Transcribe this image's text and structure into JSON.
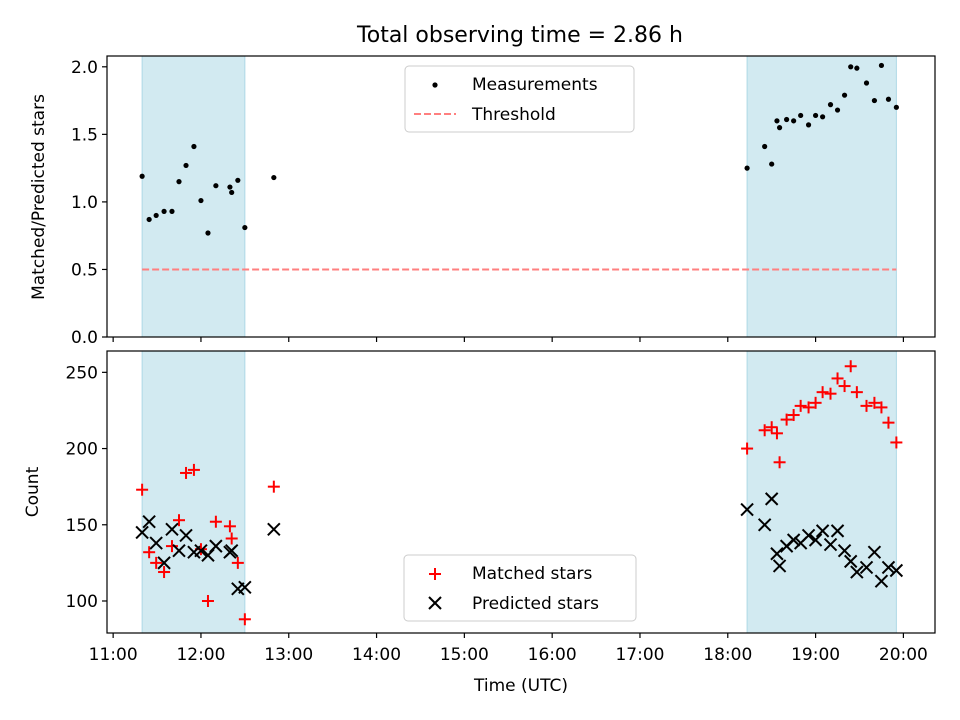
{
  "title": "Total observing time = 2.86 h",
  "chart_data": [
    {
      "type": "scatter",
      "ylabel": "Matched/Predicted stars",
      "xlabel": "",
      "xlim": [
        10.93,
        20.36
      ],
      "ylim": [
        0,
        2.08
      ],
      "yticks": [
        0.0,
        0.5,
        1.0,
        1.5,
        2.0
      ],
      "ytick_labels": [
        "0.0",
        "0.5",
        "1.0",
        "1.5",
        "2.0"
      ],
      "grid": false,
      "legend_position": "top-center",
      "shaded_spans": [
        [
          11.33,
          12.5
        ],
        [
          18.22,
          19.92
        ]
      ],
      "shade_color": "#add8e6",
      "series": [
        {
          "name": "Measurements",
          "marker": "dot",
          "color": "#000000",
          "x": [
            11.33,
            11.41,
            11.49,
            11.58,
            11.67,
            11.75,
            11.83,
            11.92,
            12.0,
            12.08,
            12.17,
            12.33,
            12.35,
            12.42,
            12.5,
            12.83,
            18.22,
            18.42,
            18.5,
            18.56,
            18.59,
            18.67,
            18.75,
            18.83,
            18.92,
            19.0,
            19.08,
            19.17,
            19.25,
            19.33,
            19.4,
            19.47,
            19.58,
            19.67,
            19.75,
            19.83,
            19.92
          ],
          "y": [
            1.19,
            0.87,
            0.9,
            0.93,
            0.93,
            1.15,
            1.27,
            1.41,
            1.01,
            0.77,
            1.12,
            1.11,
            1.07,
            1.16,
            0.81,
            1.18,
            1.25,
            1.41,
            1.28,
            1.6,
            1.55,
            1.61,
            1.6,
            1.64,
            1.57,
            1.64,
            1.63,
            1.72,
            1.68,
            1.79,
            2.0,
            1.99,
            1.88,
            1.75,
            2.01,
            1.76,
            1.7
          ]
        },
        {
          "name": "Threshold",
          "marker": "dashed-line",
          "color": "#ff7f7f",
          "x": [
            11.33,
            19.92
          ],
          "y": [
            0.5,
            0.5
          ]
        }
      ]
    },
    {
      "type": "scatter",
      "ylabel": "Count",
      "xlabel": "Time (UTC)",
      "xlim": [
        10.93,
        20.36
      ],
      "ylim": [
        79,
        264
      ],
      "yticks": [
        100,
        150,
        200,
        250
      ],
      "ytick_labels": [
        "100",
        "150",
        "200",
        "250"
      ],
      "xticks": [
        11,
        12,
        13,
        14,
        15,
        16,
        17,
        18,
        19,
        20
      ],
      "xtick_labels": [
        "11:00",
        "12:00",
        "13:00",
        "14:00",
        "15:00",
        "16:00",
        "17:00",
        "18:00",
        "19:00",
        "20:00"
      ],
      "grid": false,
      "legend_position": "bottom-center",
      "shaded_spans": [
        [
          11.33,
          12.5
        ],
        [
          18.22,
          19.92
        ]
      ],
      "shade_color": "#add8e6",
      "series": [
        {
          "name": "Matched stars",
          "marker": "plus",
          "color": "#ff0000",
          "x": [
            11.33,
            11.41,
            11.49,
            11.58,
            11.67,
            11.75,
            11.83,
            11.92,
            12.0,
            12.08,
            12.17,
            12.33,
            12.35,
            12.42,
            12.5,
            12.83,
            18.22,
            18.42,
            18.5,
            18.56,
            18.59,
            18.67,
            18.75,
            18.83,
            18.92,
            19.0,
            19.08,
            19.17,
            19.25,
            19.33,
            19.4,
            19.47,
            19.58,
            19.67,
            19.75,
            19.83,
            19.92
          ],
          "y": [
            173,
            132,
            125,
            119,
            136,
            153,
            184,
            186,
            134,
            100,
            152,
            149,
            141,
            125,
            88,
            175,
            200,
            212,
            214,
            210,
            191,
            219,
            222,
            228,
            227,
            230,
            237,
            236,
            246,
            241,
            254,
            237,
            228,
            230,
            227,
            217,
            204
          ]
        },
        {
          "name": "Predicted stars",
          "marker": "x",
          "color": "#000000",
          "x": [
            11.33,
            11.41,
            11.49,
            11.58,
            11.67,
            11.75,
            11.83,
            11.92,
            12.0,
            12.08,
            12.17,
            12.33,
            12.35,
            12.42,
            12.5,
            12.83,
            18.22,
            18.42,
            18.5,
            18.56,
            18.59,
            18.67,
            18.75,
            18.83,
            18.92,
            19.0,
            19.08,
            19.17,
            19.25,
            19.33,
            19.4,
            19.47,
            19.58,
            19.67,
            19.75,
            19.83,
            19.92
          ],
          "y": [
            145,
            152,
            138,
            125,
            147,
            133,
            143,
            132,
            133,
            130,
            136,
            132,
            133,
            108,
            109,
            147,
            160,
            150,
            167,
            131,
            123,
            136,
            140,
            138,
            143,
            140,
            146,
            137,
            146,
            133,
            126,
            119,
            122,
            132,
            113,
            122,
            120
          ]
        }
      ]
    }
  ]
}
